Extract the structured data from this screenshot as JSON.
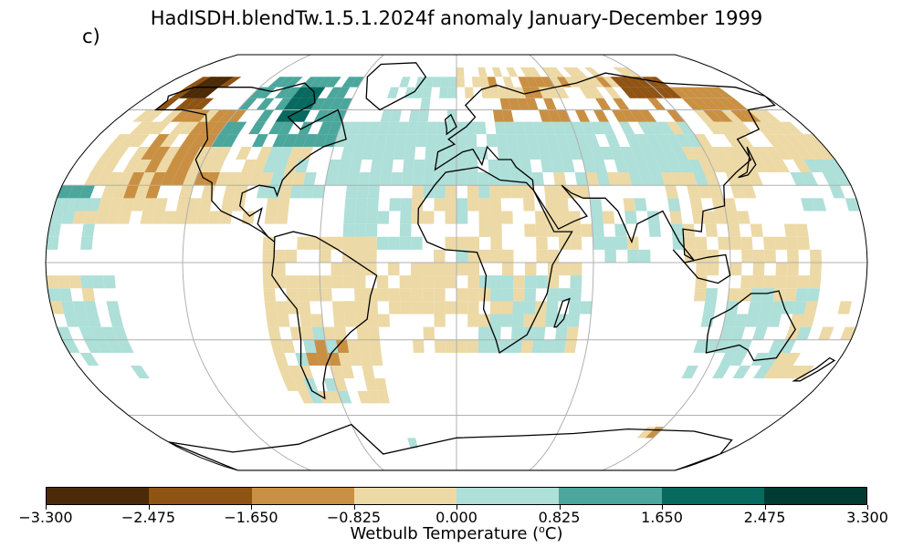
{
  "title": "HadISDH.blendTw.1.5.1.2024f anomaly January-December 1999",
  "panel_label": "c)",
  "colorbar": {
    "ticks": [
      "−3.300",
      "−2.475",
      "−1.650",
      "−0.825",
      "0.000",
      "0.825",
      "1.650",
      "2.475",
      "3.300"
    ],
    "label_prefix": "Wetbulb Temperature (",
    "label_sup": "o",
    "label_suffix": "C)",
    "colors": [
      "#4a2a07",
      "#8f5314",
      "#c99043",
      "#ecd9a6",
      "#aedfd9",
      "#4ba69c",
      "#08695f",
      "#003b33"
    ]
  },
  "map": {
    "projection": "Robinson",
    "gridlines": true,
    "anomaly_cells": [
      {
        "region": "Alaska/NW Canada",
        "value": -2.4
      },
      {
        "region": "Western North America",
        "value": -1.2
      },
      {
        "region": "Eastern Canada",
        "value": 1.3
      },
      {
        "region": "North Atlantic / Europe",
        "value": 0.5
      },
      {
        "region": "Siberia",
        "value": -1.5
      },
      {
        "region": "Central Asia",
        "value": 0.4
      },
      {
        "region": "East Asia",
        "value": -0.9
      },
      {
        "region": "Africa",
        "value": -0.4
      },
      {
        "region": "South America",
        "value": -0.4
      },
      {
        "region": "Australia",
        "value": 0.4
      }
    ]
  }
}
